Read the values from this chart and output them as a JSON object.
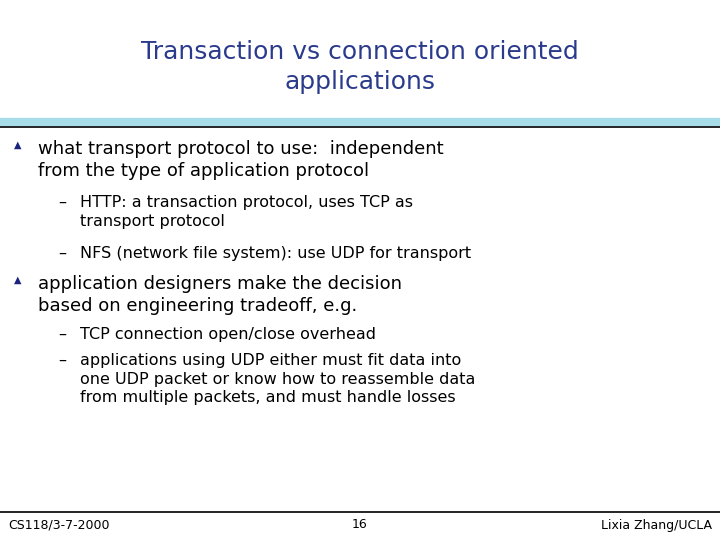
{
  "title_line1": "Transaction vs connection oriented",
  "title_line2": "applications",
  "title_color": "#2B3B8C",
  "title_fontsize": 18,
  "bg_color": "#FFFFFF",
  "header_line_color_thick": "#A8DCE8",
  "header_line_color_thin": "#000000",
  "footer_line_color": "#000000",
  "bullet_color": "#1A237E",
  "body_fontsize": 13,
  "sub_fontsize": 11.5,
  "footer_left": "CS118/3-7-2000",
  "footer_center": "16",
  "footer_right": "Lixia Zhang/UCLA",
  "footer_fontsize": 9,
  "bullet1_line1": "what transport protocol to use:  independent",
  "bullet1_line2": "from the type of application protocol",
  "sub1_text": "HTTP: a transaction protocol, uses TCP as\ntransport protocol",
  "sub2_text": "NFS (network file system): use UDP for transport",
  "bullet2_line1": "application designers make the decision",
  "bullet2_line2": "based on engineering tradeoff, e.g.",
  "sub3_text": "TCP connection open/close overhead",
  "sub4_text": "applications using UDP either must fit data into\none UDP packet or know how to reassemble data\nfrom multiple packets, and must handle losses"
}
